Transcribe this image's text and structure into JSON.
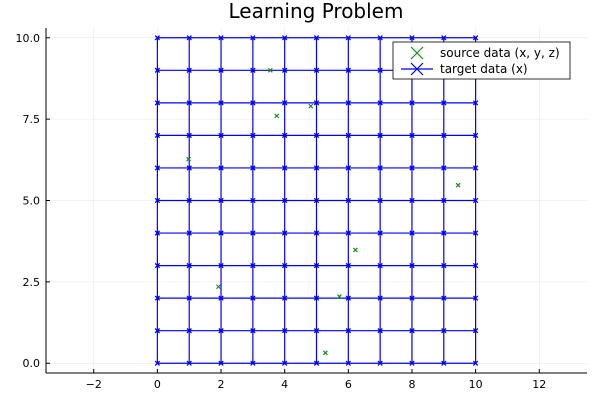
{
  "chart_data": {
    "type": "scatter",
    "title": "Learning Problem",
    "xlabel": "",
    "ylabel": "",
    "xlim": [
      -3.5,
      13.5
    ],
    "ylim": [
      -0.3,
      10.3
    ],
    "xticks": [
      -2,
      0,
      2,
      4,
      6,
      8,
      10,
      12
    ],
    "xtick_labels": [
      "−2",
      "0",
      "2",
      "4",
      "6",
      "8",
      "10",
      "12"
    ],
    "yticks": [
      0,
      2.5,
      5,
      7.5,
      10
    ],
    "ytick_labels": [
      "0.0",
      "2.5",
      "5.0",
      "7.5",
      "10.0"
    ],
    "grid": true,
    "legend_position": "top-right",
    "series": [
      {
        "name": "source data (x, y, z)",
        "color": "#1a8a1a",
        "marker": "x",
        "x": [
          0.98,
          1.92,
          3.55,
          3.75,
          4.82,
          5.28,
          5.72,
          6.22,
          9.45
        ],
        "y": [
          6.27,
          2.35,
          9.0,
          7.6,
          7.9,
          0.32,
          2.05,
          3.48,
          5.47
        ]
      },
      {
        "name": "target data (x)",
        "color": "#0000ff",
        "marker": "x",
        "grid_x": [
          0,
          1,
          2,
          3,
          4,
          5,
          6,
          7,
          8,
          9,
          10
        ],
        "grid_y": [
          0,
          1,
          2,
          3,
          4,
          5,
          6,
          7,
          8,
          9,
          10
        ],
        "connect": "grid-lines"
      }
    ]
  }
}
